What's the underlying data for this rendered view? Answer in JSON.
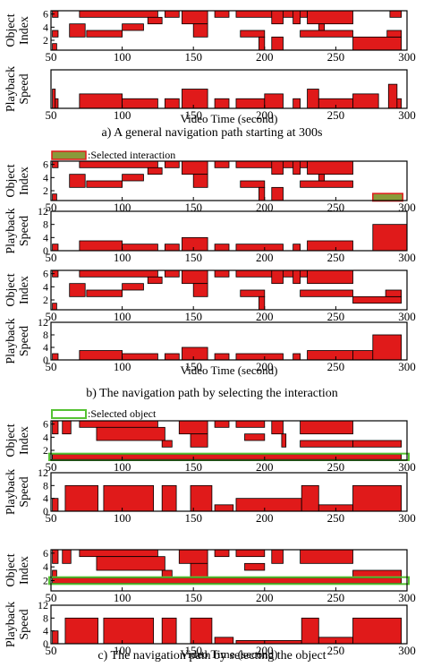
{
  "figure": {
    "captions": [
      "a) A general navigation path starting at 300s",
      "b) The navigation path by selecting the interaction",
      "c) The navigation path by selecting the object"
    ],
    "legend_interaction": ":Selected interaction",
    "legend_object": ":Selected object",
    "xlabel": "Video Time (second)",
    "object_ylabel": [
      "Object",
      "Index"
    ],
    "speed_ylabel": [
      "Playback",
      "Speed"
    ],
    "colors": {
      "fill": "#e01a1a",
      "stroke": "#000000",
      "highlight": "#55c233",
      "selected_bar": "#8a9a3a"
    }
  },
  "chart_data": [
    {
      "type": "heatmap",
      "panel": "a-object",
      "xlabel": "",
      "ylabel": "Object Index",
      "xlim": [
        50,
        300
      ],
      "ylim": [
        0.5,
        6.5
      ],
      "xticks": [
        50,
        100,
        150,
        200,
        250,
        300
      ],
      "yticks": [
        2,
        4,
        6
      ],
      "segments": [
        [
          51,
          55,
          5.5,
          6.5
        ],
        [
          51,
          55,
          2.5,
          3.5
        ],
        [
          51,
          54,
          0.5,
          1.5
        ],
        [
          70,
          125,
          5.5,
          6.5
        ],
        [
          63,
          74,
          2.5,
          4.5
        ],
        [
          75,
          100,
          2.5,
          3.5
        ],
        [
          100,
          115,
          3.5,
          4.5
        ],
        [
          118,
          128,
          4.5,
          5.5
        ],
        [
          130,
          140,
          5.5,
          6.5
        ],
        [
          142,
          160,
          4.5,
          6.5
        ],
        [
          150,
          160,
          2.5,
          4.5
        ],
        [
          165,
          175,
          5.5,
          6.5
        ],
        [
          180,
          230,
          5.5,
          6.5
        ],
        [
          183,
          200,
          2.5,
          3.5
        ],
        [
          196,
          200,
          0.5,
          2.5
        ],
        [
          205,
          213,
          4.5,
          6.5
        ],
        [
          205,
          213,
          0.5,
          2.5
        ],
        [
          220,
          225,
          4.5,
          6.5
        ],
        [
          230,
          262,
          4.5,
          6.5
        ],
        [
          225,
          262,
          2.5,
          3.5
        ],
        [
          238,
          242,
          3.5,
          4.5
        ],
        [
          262,
          296,
          0.5,
          2.5
        ],
        [
          286,
          296,
          2.5,
          3.5
        ],
        [
          288,
          296,
          5.5,
          6.5
        ]
      ]
    },
    {
      "type": "area",
      "panel": "a-speed",
      "xlabel": "Video Time (second)",
      "ylabel": "Playback Speed",
      "xlim": [
        50,
        300
      ],
      "ylim": [
        0,
        8
      ],
      "xticks": [
        50,
        100,
        150,
        200,
        250,
        300
      ],
      "yticks": [],
      "segments": [
        [
          51,
          53,
          4
        ],
        [
          53,
          55,
          2
        ],
        [
          70,
          100,
          3
        ],
        [
          100,
          125,
          2
        ],
        [
          130,
          140,
          2
        ],
        [
          142,
          160,
          4
        ],
        [
          165,
          175,
          2
        ],
        [
          180,
          200,
          2
        ],
        [
          200,
          213,
          3
        ],
        [
          220,
          225,
          2
        ],
        [
          230,
          238,
          4
        ],
        [
          238,
          262,
          2
        ],
        [
          262,
          280,
          3
        ],
        [
          287,
          293,
          5
        ],
        [
          293,
          296,
          2
        ]
      ]
    },
    {
      "type": "heatmap",
      "panel": "b1-object",
      "xlabel": "",
      "ylabel": "Object Index",
      "xlim": [
        50,
        300
      ],
      "ylim": [
        0.5,
        6.5
      ],
      "xticks": [
        50,
        100,
        150,
        200,
        250,
        300
      ],
      "yticks": [
        2,
        4,
        6
      ],
      "selected_interaction": [
        276,
        297,
        0.7,
        1.3
      ],
      "segments": [
        [
          51,
          55,
          5.5,
          6.5
        ],
        [
          51,
          54,
          0.5,
          1.5
        ],
        [
          70,
          125,
          5.5,
          6.5
        ],
        [
          63,
          74,
          2.5,
          4.5
        ],
        [
          75,
          100,
          2.5,
          3.5
        ],
        [
          100,
          115,
          3.5,
          4.5
        ],
        [
          118,
          128,
          4.5,
          5.5
        ],
        [
          130,
          140,
          5.5,
          6.5
        ],
        [
          142,
          160,
          4.5,
          6.5
        ],
        [
          150,
          160,
          2.5,
          4.5
        ],
        [
          165,
          175,
          5.5,
          6.5
        ],
        [
          180,
          230,
          5.5,
          6.5
        ],
        [
          183,
          200,
          2.5,
          3.5
        ],
        [
          196,
          200,
          0.5,
          2.5
        ],
        [
          205,
          213,
          4.5,
          6.5
        ],
        [
          205,
          213,
          0.5,
          2.5
        ],
        [
          220,
          225,
          4.5,
          6.5
        ],
        [
          230,
          262,
          4.5,
          6.5
        ],
        [
          225,
          262,
          2.5,
          3.5
        ],
        [
          238,
          242,
          3.5,
          4.5
        ]
      ]
    },
    {
      "type": "area",
      "panel": "b1-speed",
      "xlabel": "",
      "ylabel": "Playback Speed",
      "xlim": [
        50,
        300
      ],
      "ylim": [
        0,
        12
      ],
      "xticks": [
        50,
        100,
        150,
        200,
        250,
        300
      ],
      "yticks": [
        0,
        4,
        8,
        12
      ],
      "segments": [
        [
          51,
          55,
          2
        ],
        [
          70,
          100,
          3
        ],
        [
          100,
          125,
          2
        ],
        [
          130,
          140,
          2
        ],
        [
          142,
          160,
          4
        ],
        [
          165,
          175,
          2
        ],
        [
          180,
          213,
          2
        ],
        [
          220,
          225,
          2
        ],
        [
          230,
          262,
          3
        ],
        [
          276,
          300,
          8
        ]
      ]
    },
    {
      "type": "heatmap",
      "panel": "b2-object",
      "xlabel": "",
      "ylabel": "Object Index",
      "xlim": [
        50,
        300
      ],
      "ylim": [
        0.5,
        6.5
      ],
      "xticks": [
        50,
        100,
        150,
        200,
        250,
        300
      ],
      "yticks": [
        2,
        4,
        6
      ],
      "segments": [
        [
          51,
          55,
          5.5,
          6.5
        ],
        [
          51,
          54,
          0.5,
          1.5
        ],
        [
          70,
          125,
          5.5,
          6.5
        ],
        [
          63,
          74,
          2.5,
          4.5
        ],
        [
          75,
          100,
          2.5,
          3.5
        ],
        [
          100,
          115,
          3.5,
          4.5
        ],
        [
          118,
          128,
          4.5,
          5.5
        ],
        [
          130,
          140,
          5.5,
          6.5
        ],
        [
          142,
          160,
          4.5,
          6.5
        ],
        [
          150,
          160,
          2.5,
          4.5
        ],
        [
          165,
          175,
          5.5,
          6.5
        ],
        [
          180,
          230,
          5.5,
          6.5
        ],
        [
          183,
          200,
          2.5,
          3.5
        ],
        [
          196,
          200,
          0.5,
          2.5
        ],
        [
          205,
          213,
          4.5,
          6.5
        ],
        [
          220,
          225,
          4.5,
          6.5
        ],
        [
          230,
          262,
          4.5,
          6.5
        ],
        [
          225,
          262,
          2.5,
          3.5
        ],
        [
          262,
          296,
          1.5,
          2.5
        ],
        [
          285,
          296,
          2.5,
          3.5
        ]
      ]
    },
    {
      "type": "area",
      "panel": "b2-speed",
      "xlabel": "Video Time (second)",
      "ylabel": "Playback Speed",
      "xlim": [
        50,
        300
      ],
      "ylim": [
        0,
        12
      ],
      "xticks": [
        50,
        100,
        150,
        200,
        250,
        300
      ],
      "yticks": [
        0,
        4,
        8,
        12
      ],
      "segments": [
        [
          51,
          55,
          2
        ],
        [
          70,
          100,
          3
        ],
        [
          100,
          125,
          2
        ],
        [
          130,
          140,
          2
        ],
        [
          142,
          160,
          4
        ],
        [
          165,
          175,
          2
        ],
        [
          180,
          213,
          2
        ],
        [
          220,
          225,
          2
        ],
        [
          230,
          262,
          3
        ],
        [
          262,
          276,
          3
        ],
        [
          276,
          296,
          8
        ]
      ]
    },
    {
      "type": "heatmap",
      "panel": "c1-object",
      "xlabel": "",
      "ylabel": "Object Index",
      "xlim": [
        50,
        300
      ],
      "ylim": [
        0.5,
        6.5
      ],
      "xticks": [
        50,
        100,
        150,
        200,
        250,
        300
      ],
      "yticks": [
        2,
        4,
        6
      ],
      "selected_object": 1,
      "segments": [
        [
          51,
          55,
          4.5,
          6.5
        ],
        [
          51,
          54,
          0.5,
          1.5
        ],
        [
          58,
          64,
          4.5,
          6.5
        ],
        [
          70,
          125,
          5.5,
          6.5
        ],
        [
          82,
          130,
          3.5,
          5.5
        ],
        [
          128,
          135,
          2.5,
          3.5
        ],
        [
          140,
          160,
          4.5,
          6.5
        ],
        [
          148,
          160,
          2.5,
          4.5
        ],
        [
          165,
          175,
          5.5,
          6.5
        ],
        [
          180,
          200,
          5.5,
          6.5
        ],
        [
          186,
          200,
          3.5,
          4.5
        ],
        [
          205,
          213,
          4.5,
          6.5
        ],
        [
          212,
          215,
          2.5,
          4.5
        ],
        [
          225,
          262,
          4.5,
          6.5
        ],
        [
          225,
          262,
          2.5,
          3.5
        ],
        [
          262,
          296,
          2.5,
          3.5
        ],
        [
          51,
          296,
          0.6,
          1.4
        ]
      ]
    },
    {
      "type": "area",
      "panel": "c1-speed",
      "xlabel": "",
      "ylabel": "Playback Speed",
      "xlim": [
        50,
        300
      ],
      "ylim": [
        0,
        12
      ],
      "xticks": [
        50,
        100,
        150,
        200,
        250,
        300
      ],
      "yticks": [
        0,
        4,
        8,
        12
      ],
      "segments": [
        [
          51,
          55,
          4
        ],
        [
          60,
          83,
          8
        ],
        [
          87,
          122,
          8
        ],
        [
          128,
          138,
          8
        ],
        [
          148,
          163,
          8
        ],
        [
          165,
          178,
          2
        ],
        [
          180,
          226,
          4
        ],
        [
          226,
          238,
          8
        ],
        [
          238,
          262,
          2
        ],
        [
          262,
          296,
          8
        ]
      ]
    },
    {
      "type": "heatmap",
      "panel": "c2-object",
      "xlabel": "",
      "ylabel": "Object Index",
      "xlim": [
        50,
        300
      ],
      "ylim": [
        0.5,
        6.5
      ],
      "xticks": [
        50,
        100,
        150,
        200,
        250,
        300
      ],
      "yticks": [
        2,
        4,
        6
      ],
      "selected_object": 2,
      "segments": [
        [
          51,
          55,
          4.5,
          6.5
        ],
        [
          51,
          54,
          2.5,
          3.5
        ],
        [
          58,
          64,
          4.5,
          6.5
        ],
        [
          70,
          125,
          5.5,
          6.5
        ],
        [
          82,
          130,
          3.5,
          5.5
        ],
        [
          128,
          135,
          2.5,
          3.5
        ],
        [
          140,
          160,
          4.5,
          6.5
        ],
        [
          148,
          160,
          2.5,
          4.5
        ],
        [
          165,
          175,
          5.5,
          6.5
        ],
        [
          180,
          200,
          5.5,
          6.5
        ],
        [
          186,
          200,
          3.5,
          4.5
        ],
        [
          205,
          213,
          4.5,
          6.5
        ],
        [
          225,
          262,
          4.5,
          6.5
        ],
        [
          262,
          296,
          2.5,
          3.5
        ],
        [
          51,
          296,
          1.6,
          2.4
        ]
      ]
    },
    {
      "type": "area",
      "panel": "c2-speed",
      "xlabel": "Video Time (second)",
      "ylabel": "Playback Speed",
      "xlim": [
        50,
        300
      ],
      "ylim": [
        0,
        12
      ],
      "xticks": [
        50,
        100,
        150,
        200,
        250,
        300
      ],
      "yticks": [
        0,
        4,
        8,
        12
      ],
      "segments": [
        [
          51,
          55,
          4
        ],
        [
          60,
          83,
          8
        ],
        [
          87,
          122,
          8
        ],
        [
          128,
          138,
          8
        ],
        [
          148,
          163,
          8
        ],
        [
          165,
          178,
          2
        ],
        [
          180,
          226,
          1
        ],
        [
          226,
          238,
          8
        ],
        [
          238,
          262,
          2
        ],
        [
          262,
          296,
          8
        ]
      ]
    }
  ]
}
